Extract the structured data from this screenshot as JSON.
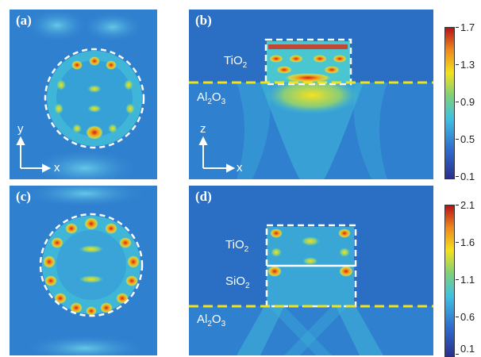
{
  "panels": {
    "a": {
      "label": "(a)",
      "axes": {
        "v": "y",
        "h": "x"
      }
    },
    "b": {
      "label": "(b)",
      "axes": {
        "v": "z",
        "h": "x"
      },
      "materials": {
        "top": "TiO",
        "top_sub": "2",
        "sub": "Al",
        "sub_sub1": "2",
        "sub_o": "O",
        "sub_sub2": "3"
      }
    },
    "c": {
      "label": "(c)"
    },
    "d": {
      "label": "(d)",
      "materials": {
        "top": "TiO",
        "top_sub": "2",
        "mid": "SiO",
        "mid_sub": "2",
        "sub": "Al",
        "sub_sub1": "2",
        "sub_o": "O",
        "sub_sub2": "3"
      }
    }
  },
  "colorbars": [
    {
      "ticks": [
        "1.7",
        "1.3",
        "0.9",
        "0.5",
        "0.1"
      ]
    },
    {
      "ticks": [
        "2.1",
        "1.6",
        "1.1",
        "0.6",
        "0.1"
      ]
    }
  ],
  "colors": {
    "background": "#2f7fd0",
    "outline": "#ffffff",
    "substrate_line": "#f2e21c",
    "hot": "#e22a1a",
    "warm": "#f6d21e",
    "cool": "#3fc2d8"
  }
}
